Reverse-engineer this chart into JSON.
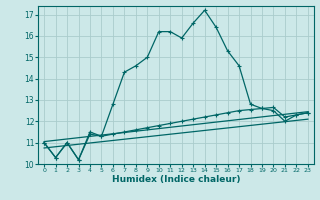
{
  "xlabel": "Humidex (Indice chaleur)",
  "bg_color": "#cce8e8",
  "grid_color": "#aacccc",
  "line_color": "#006666",
  "xlim": [
    -0.5,
    23.5
  ],
  "ylim": [
    10,
    17.4
  ],
  "yticks": [
    10,
    11,
    12,
    13,
    14,
    15,
    16,
    17
  ],
  "xticks": [
    0,
    1,
    2,
    3,
    4,
    5,
    6,
    7,
    8,
    9,
    10,
    11,
    12,
    13,
    14,
    15,
    16,
    17,
    18,
    19,
    20,
    21,
    22,
    23
  ],
  "series1_x": [
    0,
    1,
    2,
    3,
    4,
    5,
    6,
    7,
    8,
    9,
    10,
    11,
    12,
    13,
    14,
    15,
    16,
    17,
    18,
    19,
    20,
    21,
    22,
    23
  ],
  "series1_y": [
    11.0,
    10.3,
    11.0,
    10.2,
    11.5,
    11.3,
    12.8,
    14.3,
    14.6,
    15.0,
    16.2,
    16.2,
    15.9,
    16.6,
    17.2,
    16.4,
    15.3,
    14.6,
    12.8,
    12.6,
    12.5,
    12.0,
    12.3,
    12.4
  ],
  "series2_x": [
    0,
    1,
    2,
    3,
    4,
    5,
    6,
    7,
    8,
    9,
    10,
    11,
    12,
    13,
    14,
    15,
    16,
    17,
    18,
    19,
    20,
    21,
    22,
    23
  ],
  "series2_y": [
    11.0,
    10.3,
    11.0,
    10.2,
    11.4,
    11.3,
    11.4,
    11.5,
    11.6,
    11.7,
    11.8,
    11.9,
    12.0,
    12.1,
    12.2,
    12.3,
    12.4,
    12.5,
    12.55,
    12.6,
    12.65,
    12.2,
    12.3,
    12.4
  ],
  "series3_x": [
    0,
    23
  ],
  "series3_y": [
    11.05,
    12.45
  ],
  "series4_x": [
    0,
    23
  ],
  "series4_y": [
    10.75,
    12.1
  ]
}
